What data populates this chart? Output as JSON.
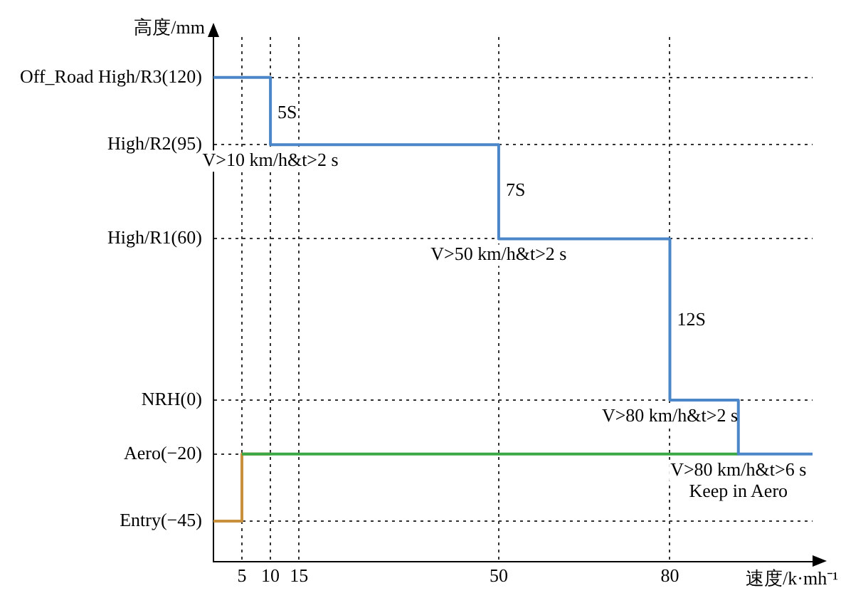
{
  "chart_data": {
    "type": "step",
    "xlabel": "速度/k·mh⁻¹",
    "ylabel": "高度/mm",
    "xlim": [
      0,
      105
    ],
    "xticks": [
      5,
      10,
      15,
      50,
      80
    ],
    "ylim": [
      -60,
      135
    ],
    "yticks": [
      {
        "value": 120,
        "label": "Off_Road High/R3(120)"
      },
      {
        "value": 95,
        "label": "High/R2(95)"
      },
      {
        "value": 60,
        "label": "High/R1(60)"
      },
      {
        "value": 0,
        "label": "NRH(0)"
      },
      {
        "value": -20,
        "label": "Aero(−20)"
      },
      {
        "value": -45,
        "label": "Entry(−45)"
      }
    ],
    "grid": true,
    "legend": false,
    "marker": "none",
    "series": [
      {
        "color": "#4a86c8",
        "x": [
          0,
          10,
          50,
          80,
          92,
          105
        ],
        "values": [
          120,
          95,
          60,
          0,
          -20,
          -20
        ]
      },
      {
        "color": "#3aa845",
        "x": [
          5,
          92
        ],
        "values": [
          -20,
          -20
        ]
      },
      {
        "color": "#c8903a",
        "x": [
          0,
          5,
          10
        ],
        "values": [
          -45,
          -20,
          -20
        ]
      }
    ],
    "annotations": [
      {
        "text": "5S",
        "x": 10,
        "y": 107
      },
      {
        "text": "V>10 km/h&t>2 s",
        "x": 10,
        "y": 95
      },
      {
        "text": "7S",
        "x": 50,
        "y": 78
      },
      {
        "text": "V>50 km/h&t>2 s",
        "x": 50,
        "y": 60
      },
      {
        "text": "12S",
        "x": 80,
        "y": 30
      },
      {
        "text": "V>80 km/h&t>2 s",
        "x": 80,
        "y": 0
      },
      {
        "text": "V>80 km/h&t>6 s",
        "x": 92,
        "y": -20
      },
      {
        "text": "Keep in Aero",
        "x": 92,
        "y": -20
      }
    ]
  }
}
